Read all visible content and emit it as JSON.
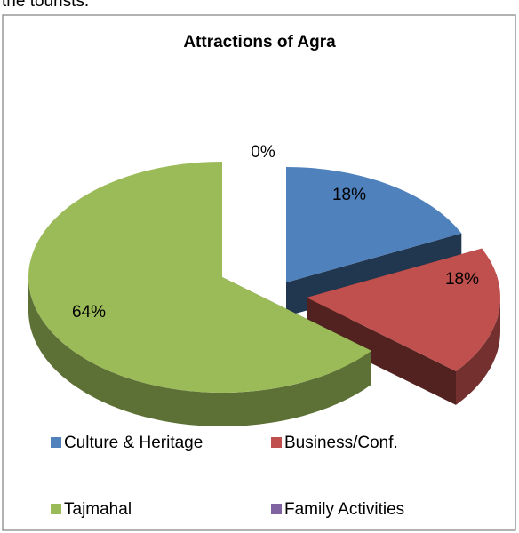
{
  "context_text": "the tourists.",
  "chart_data": {
    "type": "pie",
    "title": "Attractions of Agra",
    "categories": [
      "Culture & Heritage",
      "Business/Conf.",
      "Tajmahal",
      "Family Activities"
    ],
    "values": [
      18,
      18,
      64,
      0
    ],
    "value_labels": [
      "18%",
      "18%",
      "64%",
      "0%"
    ],
    "colors": [
      "#4f81bd",
      "#c0504d",
      "#9bbb59",
      "#8064a2"
    ],
    "legend": "bottom"
  }
}
